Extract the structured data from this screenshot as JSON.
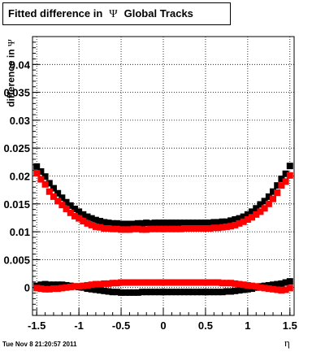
{
  "title": {
    "prefix": "Fitted difference in",
    "symbol": "Ψ",
    "suffix": "Global Tracks"
  },
  "footer": {
    "timestamp": "Tue Nov  8 21:20:57 2011"
  },
  "chart_data": {
    "type": "scatter",
    "xlabel": "η",
    "ylabel_prefix": "difference in",
    "ylabel_symbol": "Ψ",
    "xlim": [
      -1.55,
      1.55
    ],
    "ylim": [
      -0.005,
      0.045
    ],
    "xticks": [
      -1.5,
      -1,
      -0.5,
      0,
      0.5,
      1,
      1.5
    ],
    "xtick_labels": [
      "-1.5",
      "-1",
      "-0.5",
      "0",
      "0.5",
      "1",
      "1.5"
    ],
    "yticks": [
      0,
      0.005,
      0.01,
      0.015,
      0.02,
      0.025,
      0.03,
      0.035,
      0.04
    ],
    "ytick_labels": [
      "0",
      "0.005",
      "0.01",
      "0.015",
      "0.02",
      "0.025",
      "0.03",
      "0.035",
      "0.04"
    ],
    "grid": true,
    "colors": {
      "series_black": "#000000",
      "series_red": "#ff0000"
    },
    "series": [
      {
        "color": "#000000",
        "x": [
          -1.5,
          -1.45,
          -1.4,
          -1.35,
          -1.3,
          -1.25,
          -1.2,
          -1.15,
          -1.1,
          -1.05,
          -1,
          -0.95,
          -0.9,
          -0.85,
          -0.8,
          -0.75,
          -0.7,
          -0.65,
          -0.6,
          -0.55,
          -0.5,
          -0.45,
          -0.4,
          -0.35,
          -0.3,
          -0.25,
          -0.2,
          -0.15,
          -0.1,
          -0.05,
          0,
          0.05,
          0.1,
          0.15,
          0.2,
          0.25,
          0.3,
          0.35,
          0.4,
          0.45,
          0.5,
          0.55,
          0.6,
          0.65,
          0.7,
          0.75,
          0.8,
          0.85,
          0.9,
          0.95,
          1,
          1.05,
          1.1,
          1.15,
          1.2,
          1.25,
          1.3,
          1.35,
          1.4,
          1.45,
          1.5
        ],
        "y": [
          0.0217,
          0.0208,
          0.0199,
          0.0187,
          0.0178,
          0.0169,
          0.0161,
          0.0153,
          0.0147,
          0.0141,
          0.0136,
          0.0131,
          0.0127,
          0.0124,
          0.0121,
          0.0119,
          0.0117,
          0.0116,
          0.0115,
          0.0115,
          0.0114,
          0.0114,
          0.0114,
          0.0114,
          0.0115,
          0.0115,
          0.0116,
          0.0115,
          0.0116,
          0.0116,
          0.0116,
          0.0116,
          0.0116,
          0.0116,
          0.0116,
          0.0116,
          0.0116,
          0.0116,
          0.0116,
          0.0116,
          0.0116,
          0.0116,
          0.0117,
          0.0117,
          0.0118,
          0.0118,
          0.012,
          0.0122,
          0.0124,
          0.0127,
          0.0131,
          0.0136,
          0.0142,
          0.0149,
          0.0155,
          0.0163,
          0.0172,
          0.0183,
          0.0195,
          0.0204,
          0.0218
        ]
      },
      {
        "color": "#ff0000",
        "x": [
          -1.5,
          -1.45,
          -1.4,
          -1.35,
          -1.3,
          -1.25,
          -1.2,
          -1.15,
          -1.1,
          -1.05,
          -1,
          -0.95,
          -0.9,
          -0.85,
          -0.8,
          -0.75,
          -0.7,
          -0.65,
          -0.6,
          -0.55,
          -0.5,
          -0.45,
          -0.4,
          -0.35,
          -0.3,
          -0.25,
          -0.2,
          -0.15,
          -0.1,
          -0.05,
          0,
          0.05,
          0.1,
          0.15,
          0.2,
          0.25,
          0.3,
          0.35,
          0.4,
          0.45,
          0.5,
          0.55,
          0.6,
          0.65,
          0.7,
          0.75,
          0.8,
          0.85,
          0.9,
          0.95,
          1,
          1.05,
          1.1,
          1.15,
          1.2,
          1.25,
          1.3,
          1.35,
          1.4,
          1.45,
          1.5
        ],
        "y": [
          0.0205,
          0.0194,
          0.0185,
          0.0172,
          0.0163,
          0.0155,
          0.0148,
          0.0141,
          0.0134,
          0.0128,
          0.0124,
          0.0119,
          0.0115,
          0.0112,
          0.0109,
          0.0108,
          0.0106,
          0.0106,
          0.0105,
          0.0105,
          0.0104,
          0.0104,
          0.0104,
          0.0105,
          0.0105,
          0.0104,
          0.0104,
          0.0105,
          0.0105,
          0.0105,
          0.0105,
          0.0105,
          0.0105,
          0.0105,
          0.0105,
          0.0106,
          0.0106,
          0.0106,
          0.0106,
          0.0106,
          0.0106,
          0.0106,
          0.0107,
          0.0107,
          0.0108,
          0.0109,
          0.011,
          0.0112,
          0.0115,
          0.0118,
          0.0122,
          0.0126,
          0.0131,
          0.0136,
          0.0142,
          0.015,
          0.0159,
          0.017,
          0.0183,
          0.019,
          0.0201
        ]
      },
      {
        "color": "#000000",
        "x": [
          -1.5,
          -1.45,
          -1.4,
          -1.35,
          -1.3,
          -1.25,
          -1.2,
          -1.15,
          -1.1,
          -1.05,
          -1,
          -0.95,
          -0.9,
          -0.85,
          -0.8,
          -0.75,
          -0.7,
          -0.65,
          -0.6,
          -0.55,
          -0.5,
          -0.45,
          -0.4,
          -0.35,
          -0.3,
          -0.25,
          -0.2,
          -0.15,
          -0.1,
          -0.05,
          0,
          0.05,
          0.1,
          0.15,
          0.2,
          0.25,
          0.3,
          0.35,
          0.4,
          0.45,
          0.5,
          0.55,
          0.6,
          0.65,
          0.7,
          0.75,
          0.8,
          0.85,
          0.9,
          0.95,
          1,
          1.05,
          1.1,
          1.15,
          1.2,
          1.25,
          1.3,
          1.35,
          1.4,
          1.45,
          1.5
        ],
        "y": [
          0.0003,
          0.0005,
          0.0006,
          0.0005,
          0.0005,
          0.0005,
          0.0005,
          0.0004,
          0.0003,
          0.0002,
          0.0001,
          0,
          -0.0002,
          -0.0003,
          -0.0004,
          -0.0005,
          -0.0006,
          -0.0007,
          -0.0008,
          -0.0008,
          -0.0009,
          -0.0009,
          -0.0009,
          -0.0009,
          -0.0009,
          -0.0008,
          -0.0008,
          -0.0008,
          -0.0008,
          -0.0008,
          -0.0008,
          -0.0008,
          -0.0008,
          -0.0008,
          -0.0008,
          -0.0008,
          -0.0008,
          -0.0008,
          -0.0008,
          -0.0008,
          -0.0008,
          -0.0008,
          -0.0008,
          -0.0008,
          -0.0008,
          -0.0007,
          -0.0007,
          -0.0006,
          -0.0005,
          -0.0004,
          -0.0003,
          -0.0002,
          0,
          0.0002,
          0.0003,
          0.0004,
          0.0005,
          0.0006,
          0.0007,
          0.0009,
          0.0011
        ]
      },
      {
        "color": "#ff0000",
        "x": [
          -1.5,
          -1.45,
          -1.4,
          -1.35,
          -1.3,
          -1.25,
          -1.2,
          -1.15,
          -1.1,
          -1.05,
          -1,
          -0.95,
          -0.9,
          -0.85,
          -0.8,
          -0.75,
          -0.7,
          -0.65,
          -0.6,
          -0.55,
          -0.5,
          -0.45,
          -0.4,
          -0.35,
          -0.3,
          -0.25,
          -0.2,
          -0.15,
          -0.1,
          -0.05,
          0,
          0.05,
          0.1,
          0.15,
          0.2,
          0.25,
          0.3,
          0.35,
          0.4,
          0.45,
          0.5,
          0.55,
          0.6,
          0.65,
          0.7,
          0.75,
          0.8,
          0.85,
          0.9,
          0.95,
          1,
          1.05,
          1.1,
          1.15,
          1.2,
          1.25,
          1.3,
          1.35,
          1.4,
          1.45,
          1.5
        ],
        "y": [
          -0.0001,
          -0.0002,
          -0.0003,
          -0.0003,
          -0.0002,
          -0.0002,
          -0.0001,
          0,
          0.0001,
          0.0002,
          0.0002,
          0.0003,
          0.0004,
          0.0005,
          0.0006,
          0.0006,
          0.0007,
          0.0007,
          0.0008,
          0.0008,
          0.0009,
          0.0009,
          0.0009,
          0.0009,
          0.0009,
          0.0009,
          0.0009,
          0.0009,
          0.0009,
          0.0009,
          0.0009,
          0.0009,
          0.0009,
          0.0009,
          0.0009,
          0.0009,
          0.0009,
          0.0009,
          0.0009,
          0.0009,
          0.0009,
          0.0009,
          0.0009,
          0.0009,
          0.0008,
          0.0008,
          0.0008,
          0.0007,
          0.0006,
          0.0005,
          0.0004,
          0.0003,
          0.0002,
          0,
          -0.0001,
          -0.0002,
          -0.0003,
          -0.0004,
          -0.0005,
          -0.0004,
          -0.0001
        ]
      }
    ]
  }
}
